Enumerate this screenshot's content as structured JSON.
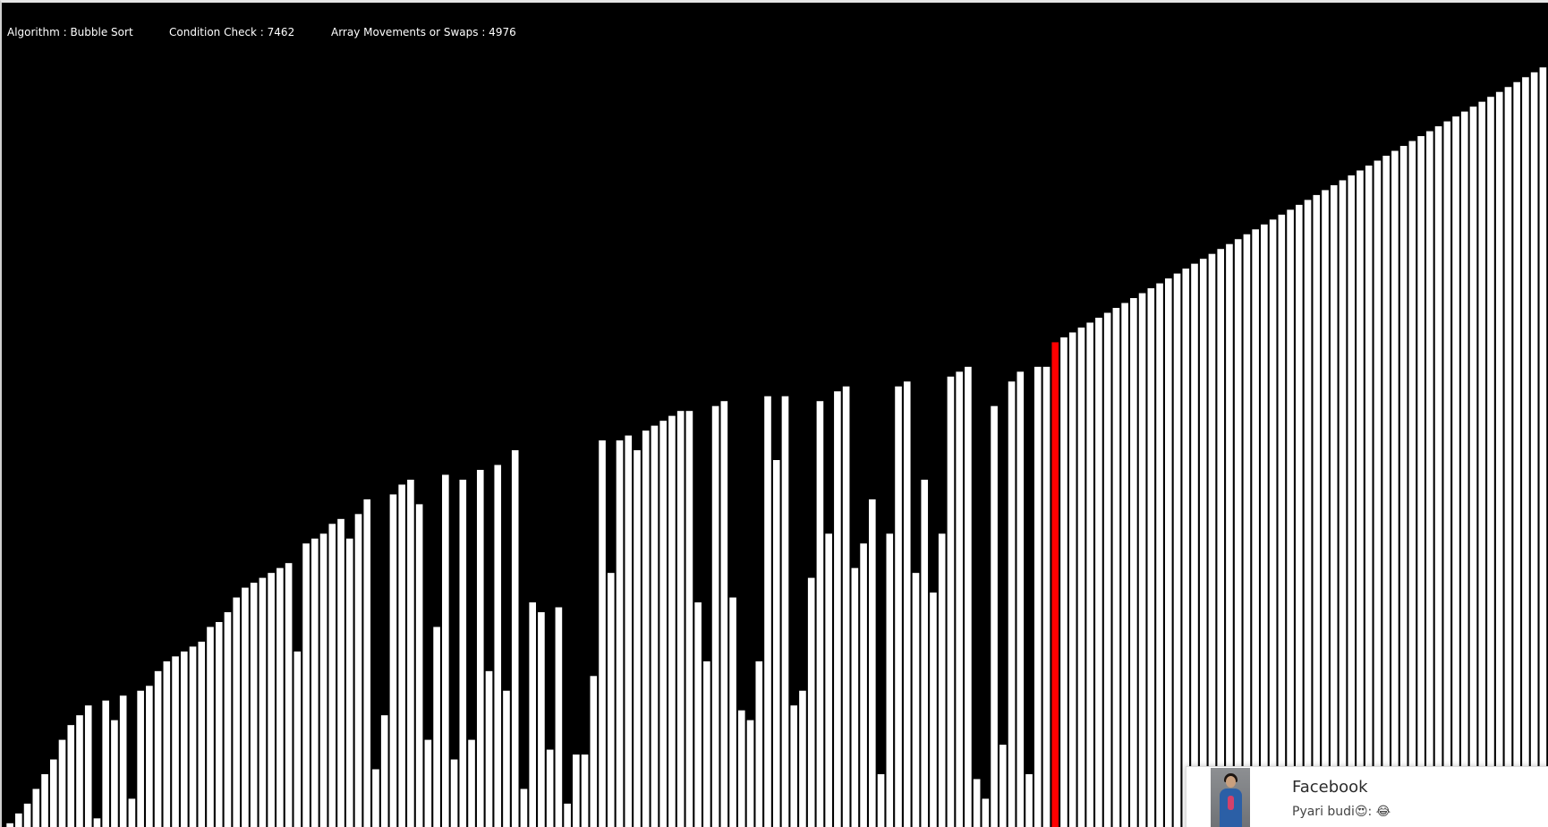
{
  "status_bar": {
    "algorithm": "Algorithm : Bubble Sort",
    "condition_check": "Condition Check : 7462",
    "swaps": "Array Movements or Swaps : 4976"
  },
  "visualizer": {
    "background_color": "#000000",
    "bar_color": "#ffffff",
    "bar_border_color": "#000000",
    "active_bar_color": "#ff0000",
    "active_index": 120,
    "max_value": 100,
    "values": [
      1,
      3,
      5,
      8,
      11,
      14,
      18,
      21,
      23,
      25,
      2,
      26,
      22,
      27,
      6,
      28,
      29,
      32,
      34,
      35,
      36,
      37,
      38,
      41,
      42,
      44,
      47,
      49,
      50,
      51,
      52,
      53,
      54,
      36,
      58,
      59,
      60,
      62,
      63,
      59,
      64,
      67,
      12,
      23,
      68,
      70,
      71,
      66,
      18,
      41,
      72,
      14,
      71,
      18,
      73,
      32,
      74,
      28,
      77,
      8,
      46,
      44,
      16,
      45,
      5,
      15,
      15,
      31,
      79,
      52,
      79,
      80,
      77,
      81,
      82,
      83,
      84,
      85,
      85,
      46,
      34,
      86,
      87,
      47,
      24,
      22,
      34,
      88,
      75,
      88,
      25,
      28,
      51,
      87,
      60,
      89,
      90,
      53,
      58,
      67,
      11,
      60,
      90,
      91,
      52,
      71,
      48,
      60,
      92,
      93,
      94,
      10,
      6,
      86,
      17,
      91,
      93,
      11,
      94,
      94,
      99,
      100,
      101,
      102,
      103,
      104,
      105,
      106,
      107,
      108,
      109,
      110,
      111,
      112,
      113,
      114,
      115,
      116,
      117,
      118,
      119,
      120,
      121,
      122,
      123,
      124,
      125,
      126,
      127,
      128,
      129,
      130,
      131,
      132,
      133,
      134,
      135,
      136,
      137,
      138,
      139,
      140,
      141,
      142,
      143,
      144,
      145,
      146,
      147,
      148,
      149,
      150,
      151,
      152,
      153,
      154,
      155
    ]
  },
  "toast": {
    "app_name": "Facebook",
    "message": "Pyari budi😍: 😂",
    "avatar_icon": "avatar-photo",
    "gear_icon": "gear-icon"
  }
}
